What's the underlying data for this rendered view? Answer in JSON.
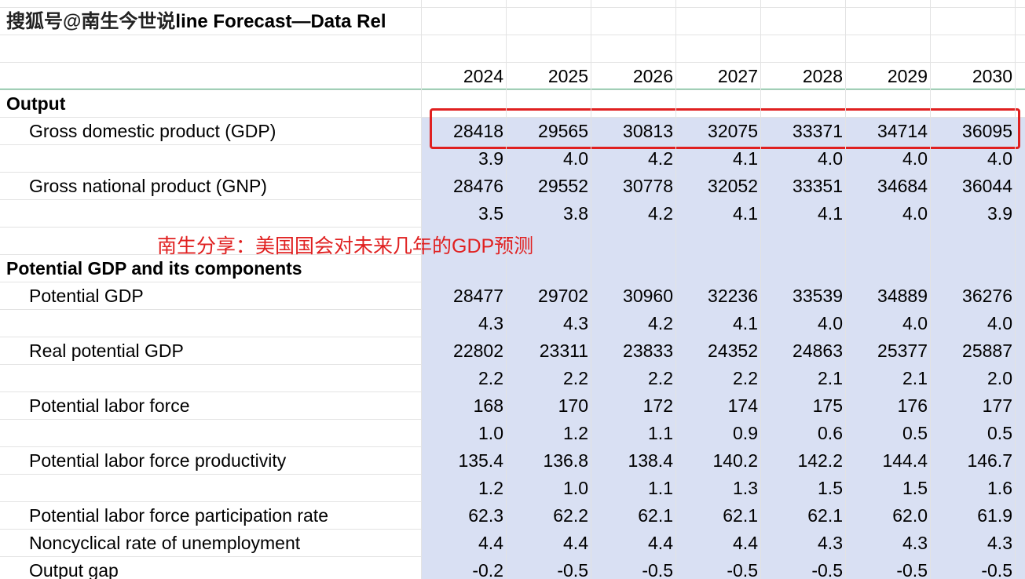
{
  "watermark": "搜狐号@南生今世说",
  "title": "line Forecast—Data Rel",
  "annotation": "南生分享：美国国会对未来几年的GDP预测",
  "header": {
    "years": [
      "2024",
      "2025",
      "2026",
      "2027",
      "2028",
      "2029",
      "2030"
    ]
  },
  "rows": [
    {
      "label": "Output"
    },
    {
      "label": "Gross domestic product (GDP)",
      "values": [
        "28418",
        "29565",
        "30813",
        "32075",
        "33371",
        "34714",
        "36095"
      ]
    },
    {
      "values": [
        "3.9",
        "4.0",
        "4.2",
        "4.1",
        "4.0",
        "4.0",
        "4.0"
      ]
    },
    {
      "label": "Gross national product (GNP)",
      "values": [
        "28476",
        "29552",
        "30778",
        "32052",
        "33351",
        "34684",
        "36044"
      ]
    },
    {
      "values": [
        "3.5",
        "3.8",
        "4.2",
        "4.1",
        "4.1",
        "4.0",
        "3.9"
      ]
    },
    {
      "label": "Potential GDP and its components"
    },
    {
      "label": "Potential GDP",
      "values": [
        "28477",
        "29702",
        "30960",
        "32236",
        "33539",
        "34889",
        "36276"
      ]
    },
    {
      "values": [
        "4.3",
        "4.3",
        "4.2",
        "4.1",
        "4.0",
        "4.0",
        "4.0"
      ]
    },
    {
      "label": "Real potential GDP",
      "values": [
        "22802",
        "23311",
        "23833",
        "24352",
        "24863",
        "25377",
        "25887"
      ]
    },
    {
      "values": [
        "2.2",
        "2.2",
        "2.2",
        "2.2",
        "2.1",
        "2.1",
        "2.0"
      ]
    },
    {
      "label": "Potential labor force",
      "values": [
        "168",
        "170",
        "172",
        "174",
        "175",
        "176",
        "177"
      ]
    },
    {
      "values": [
        "1.0",
        "1.2",
        "1.1",
        "0.9",
        "0.6",
        "0.5",
        "0.5"
      ]
    },
    {
      "label": "Potential labor force productivity",
      "values": [
        "135.4",
        "136.8",
        "138.4",
        "140.2",
        "142.2",
        "144.4",
        "146.7"
      ]
    },
    {
      "values": [
        "1.2",
        "1.0",
        "1.1",
        "1.3",
        "1.5",
        "1.5",
        "1.6"
      ]
    },
    {
      "label": "Potential labor force participation rate",
      "values": [
        "62.3",
        "62.2",
        "62.1",
        "62.1",
        "62.1",
        "62.0",
        "61.9"
      ]
    },
    {
      "label": "Noncyclical rate of unemployment",
      "values": [
        "4.4",
        "4.4",
        "4.4",
        "4.4",
        "4.3",
        "4.3",
        "4.3"
      ]
    },
    {
      "label": "Output gap",
      "values": [
        "-0.2",
        "-0.5",
        "-0.5",
        "-0.5",
        "-0.5",
        "-0.5",
        "-0.5"
      ]
    }
  ]
}
